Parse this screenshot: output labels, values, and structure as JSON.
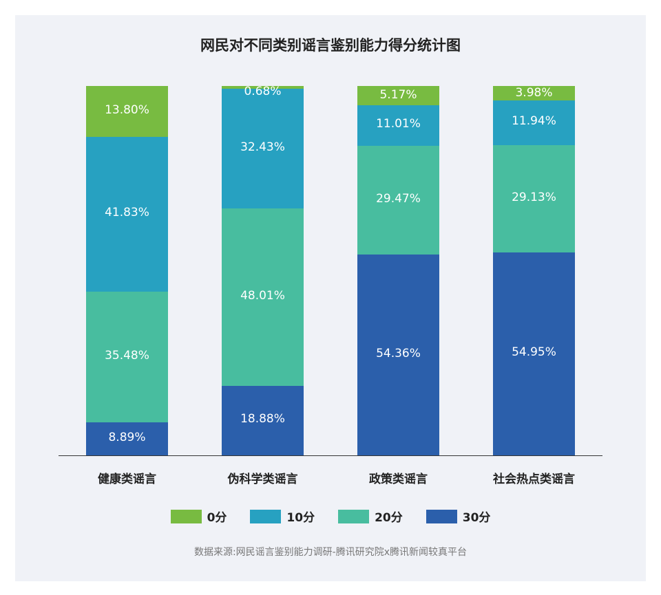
{
  "chart_data": {
    "type": "bar",
    "stacked": true,
    "normalized": true,
    "title": "网民对不同类别谣言鉴别能力得分统计图",
    "categories": [
      "健康类谣言",
      "伪科学类谣言",
      "政策类谣言",
      "社会热点类谣言"
    ],
    "series": [
      {
        "name": "30分",
        "color": "#2b5fab",
        "values": [
          8.89,
          18.88,
          54.36,
          54.95
        ],
        "labels": [
          "8.89%",
          "18.88%",
          "54.36%",
          "54.95%"
        ]
      },
      {
        "name": "20分",
        "color": "#48bd9f",
        "values": [
          35.48,
          48.01,
          29.47,
          29.13
        ],
        "labels": [
          "35.48%",
          "48.01%",
          "29.47%",
          "29.13%"
        ]
      },
      {
        "name": "10分",
        "color": "#27a1c1",
        "values": [
          41.83,
          32.43,
          11.01,
          11.94
        ],
        "labels": [
          "41.83%",
          "32.43%",
          "11.01%",
          "11.94%"
        ]
      },
      {
        "name": "0分",
        "color": "#78bb41",
        "values": [
          13.8,
          0.68,
          5.17,
          3.98
        ],
        "labels": [
          "13.80%",
          "0.68%",
          "5.17%",
          "3.98%"
        ]
      }
    ],
    "xlabel": "",
    "ylabel": "",
    "ylim": [
      0,
      100
    ],
    "grid": false,
    "legend_position": "bottom",
    "legend": [
      "0分",
      "10分",
      "20分",
      "30分"
    ],
    "source": "数据来源:网民谣言鉴别能力调研-腾讯研究院x腾讯新闻较真平台"
  },
  "legend": [
    {
      "label": "0分",
      "color": "#78bb41"
    },
    {
      "label": "10分",
      "color": "#27a1c1"
    },
    {
      "label": "20分",
      "color": "#48bd9f"
    },
    {
      "label": "30分",
      "color": "#2b5fab"
    }
  ]
}
